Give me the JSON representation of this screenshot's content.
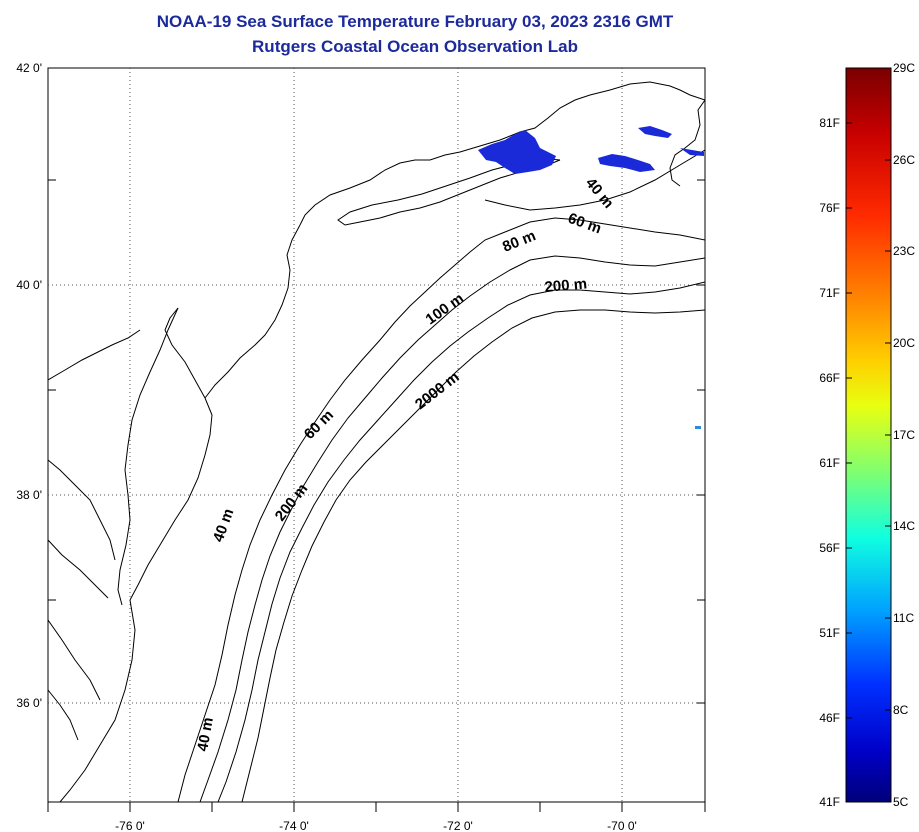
{
  "title": "NOAA-19 Sea Surface Temperature February 03, 2023 2316 GMT",
  "subtitle": "Rutgers Coastal Ocean Observation Lab",
  "map": {
    "lat_labels": [
      "42 0'",
      "40 0'",
      "38 0'",
      "36 0'"
    ],
    "lon_labels": [
      "-76 0'",
      "-74 0'",
      "-72 0'",
      "-70 0'"
    ],
    "contour_labels": [
      "40 m",
      "60 m",
      "80 m",
      "200 m",
      "100 m",
      "2000 m",
      "60 m",
      "200 m",
      "40 m",
      "40 m"
    ]
  },
  "colorbar": {
    "fahrenheit_labels": [
      "81F",
      "76F",
      "71F",
      "66F",
      "61F",
      "56F",
      "51F",
      "46F",
      "41F"
    ],
    "celsius_labels": [
      "29C",
      "26C",
      "23C",
      "20C",
      "17C",
      "14C",
      "11C",
      "8C",
      "5C"
    ],
    "colors": [
      "#7a0000",
      "#c80000",
      "#ff2a00",
      "#ff8a00",
      "#ffd000",
      "#e8ff10",
      "#80ff70",
      "#10ffe0",
      "#00a0ff",
      "#0030ff",
      "#0000c8",
      "#00007a"
    ]
  }
}
